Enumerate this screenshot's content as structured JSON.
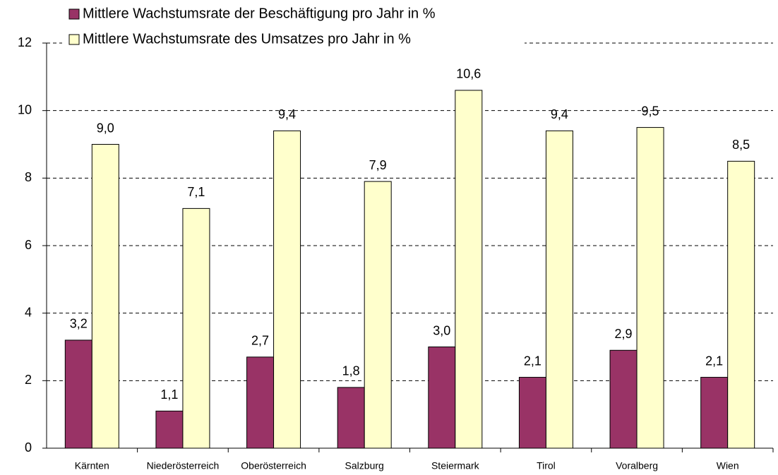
{
  "chart_data": {
    "type": "bar",
    "categories": [
      "Kärnten",
      "Niederösterreich",
      "Oberösterreich",
      "Salzburg",
      "Steiermark",
      "Tirol",
      "Voralberg",
      "Wien"
    ],
    "series": [
      {
        "name": "Mittlere Wachstumsrate der Beschäftigung pro Jahr in %",
        "color": "#993366",
        "values": [
          3.2,
          1.1,
          2.7,
          1.8,
          3.0,
          2.1,
          2.9,
          2.1
        ],
        "value_labels": [
          "3,2",
          "1,1",
          "2,7",
          "1,8",
          "3,0",
          "2,1",
          "2,9",
          "2,1"
        ]
      },
      {
        "name": "Mittlere Wachstumsrate des Umsatzes pro Jahr in %",
        "color": "#ffffcc",
        "values": [
          9.0,
          7.1,
          9.4,
          7.9,
          10.6,
          9.4,
          9.5,
          8.5
        ],
        "value_labels": [
          "9,0",
          "7,1",
          "9,4",
          "7,9",
          "10,6",
          "9,4",
          "9,5",
          "8,5"
        ]
      }
    ],
    "ylim": [
      0,
      12
    ],
    "yticks": [
      0,
      2,
      4,
      6,
      8,
      10,
      12
    ],
    "grid": true
  }
}
